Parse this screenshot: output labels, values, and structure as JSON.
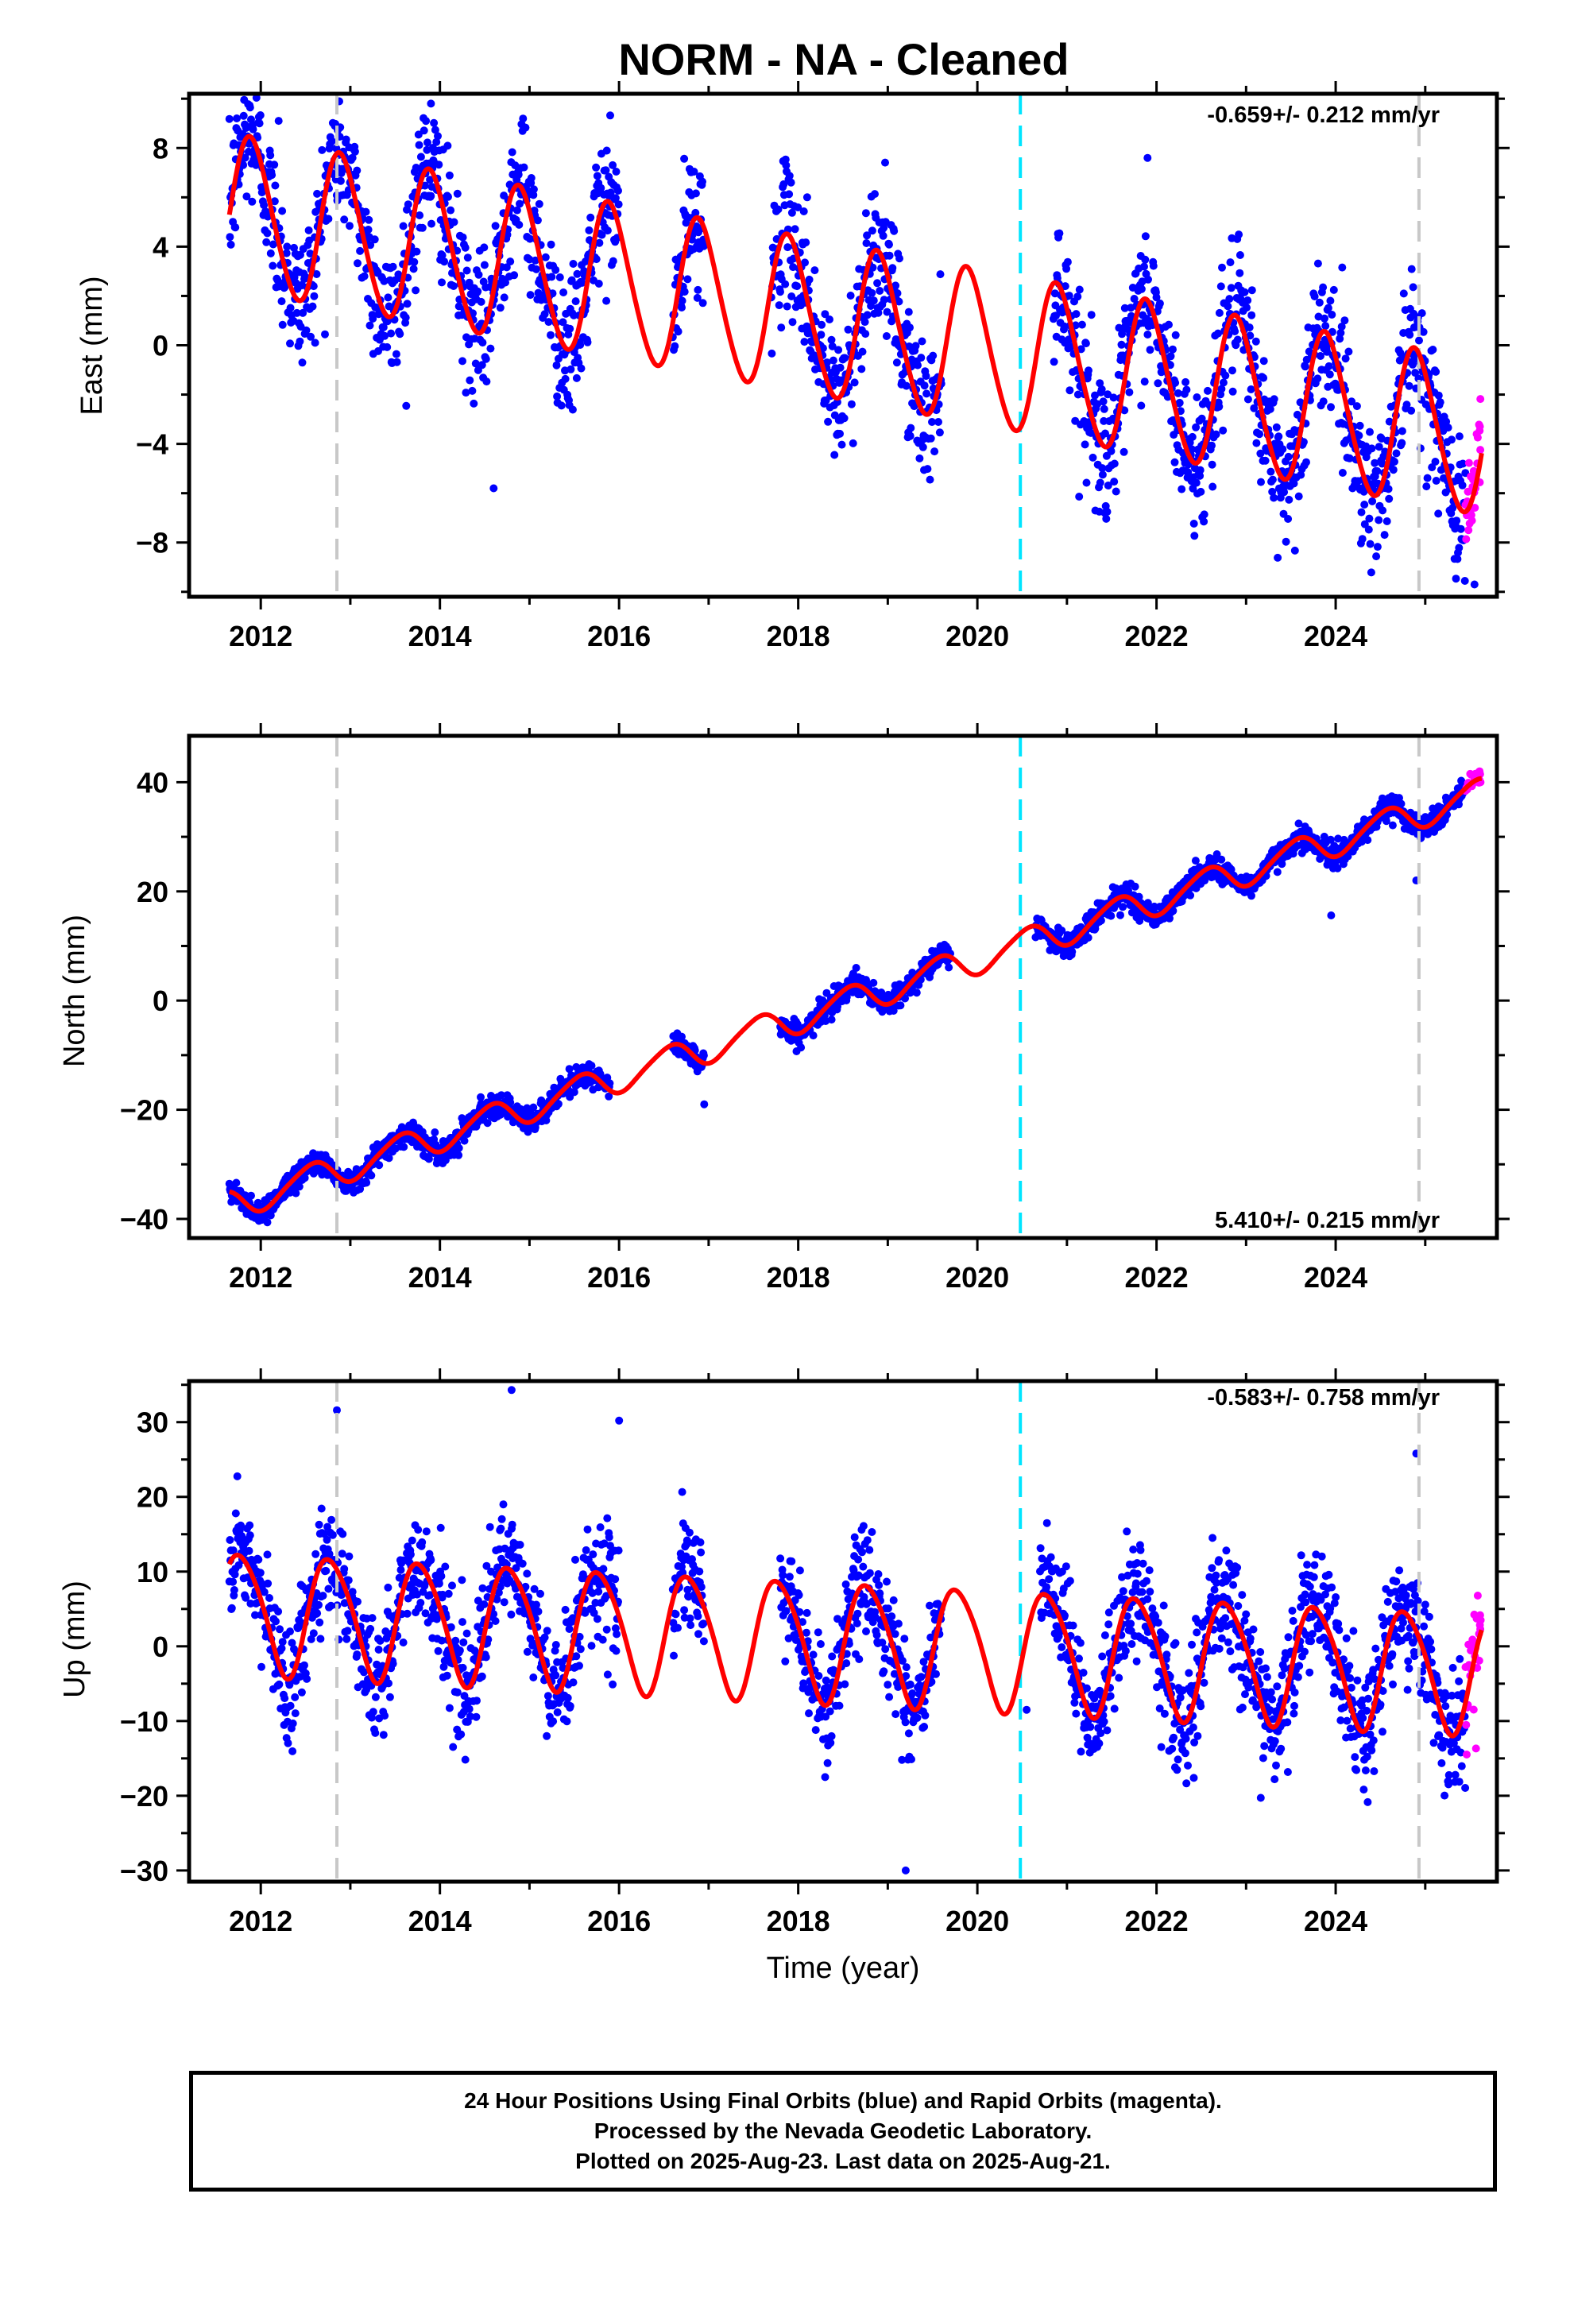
{
  "title": "NORM  - NA - Cleaned",
  "footer": {
    "line1": "24 Hour Positions Using Final Orbits (blue) and Rapid Orbits (magenta).",
    "line2": "Processed by the Nevada Geodetic Laboratory.",
    "line3": "Plotted on 2025-Aug-23. Last data on 2025-Aug-21."
  },
  "colors": {
    "final_orbits": "#0000ff",
    "rapid_orbits": "#ff00ff",
    "model_fit": "#ff0000",
    "equipment_change": "#c8c8c8",
    "earthquake": "#00e5ff"
  },
  "chart_data": [
    {
      "type": "scatter",
      "panel": "east",
      "ylabel": "East (mm)",
      "xlabel": "",
      "xlim": [
        2011.2,
        2025.8
      ],
      "ylim": [
        -10.2,
        10.2
      ],
      "xticks": [
        2012,
        2014,
        2016,
        2018,
        2020,
        2022,
        2024
      ],
      "yticks": [
        -8,
        -4,
        0,
        4,
        8
      ],
      "rate_label": "-0.659+/- 0.212 mm/yr",
      "rate_position": "top-right",
      "dashed_lines": [
        {
          "x": 2012.85,
          "kind": "equipment_change"
        },
        {
          "x": 2020.48,
          "kind": "earthquake"
        },
        {
          "x": 2024.93,
          "kind": "equipment_change"
        }
      ],
      "model": {
        "offset": 1.2,
        "trend_mm_per_yr": -0.659,
        "reference_year": 2018,
        "annual_amplitude": 3.1,
        "annual_peak_year_fraction": 0.9,
        "semiannual_amplitude": 0.3,
        "semiannual_phase": 0.3
      },
      "scatter_sd": 1.4,
      "data_spans": [
        [
          2011.65,
          2016.0
        ],
        [
          2016.6,
          2016.95
        ],
        [
          2017.7,
          2019.6
        ],
        [
          2020.85,
          2025.45
        ]
      ],
      "rapid_span": [
        2025.45,
        2025.63
      ],
      "model_span": [
        2011.65,
        2025.63
      ],
      "outliers": [
        [
          2021.9,
          7.6
        ],
        [
          2012.2,
          9.1
        ],
        [
          2013.9,
          9.8
        ],
        [
          2025.55,
          -9.7
        ],
        [
          2014.6,
          -5.8
        ],
        [
          2018.1,
          6.0
        ]
      ]
    },
    {
      "type": "scatter",
      "panel": "north",
      "ylabel": "North (mm)",
      "xlabel": "",
      "xlim": [
        2011.2,
        2025.8
      ],
      "ylim": [
        -43.5,
        48.5
      ],
      "xticks": [
        2012,
        2014,
        2016,
        2018,
        2020,
        2022,
        2024
      ],
      "yticks": [
        -40,
        -20,
        0,
        20,
        40
      ],
      "rate_label": "5.410+/- 0.215 mm/yr",
      "rate_position": "bottom-right",
      "dashed_lines": [
        {
          "x": 2012.85,
          "kind": "equipment_change"
        },
        {
          "x": 2020.48,
          "kind": "earthquake"
        },
        {
          "x": 2024.93,
          "kind": "equipment_change"
        }
      ],
      "model": {
        "offset": -3.2,
        "trend_mm_per_yr": 5.41,
        "reference_year": 2018,
        "annual_amplitude": 2.7,
        "annual_peak_year_fraction": 0.55,
        "semiannual_amplitude": 0.4,
        "semiannual_phase": 0.2
      },
      "scatter_sd": 1.1,
      "data_spans": [
        [
          2011.65,
          2015.9
        ],
        [
          2016.6,
          2016.95
        ],
        [
          2017.8,
          2019.7
        ],
        [
          2020.65,
          2025.45
        ]
      ],
      "rapid_span": [
        2025.45,
        2025.63
      ],
      "model_span": [
        2011.65,
        2025.63
      ],
      "outliers": [
        [
          2023.95,
          15.6
        ],
        [
          2024.9,
          22.0
        ],
        [
          2016.95,
          -19.0
        ]
      ]
    },
    {
      "type": "scatter",
      "panel": "up",
      "ylabel": "Up (mm)",
      "xlabel": "Time (year)",
      "xlim": [
        2011.2,
        2025.8
      ],
      "ylim": [
        -31.5,
        35.5
      ],
      "xticks": [
        2012,
        2014,
        2016,
        2018,
        2020,
        2022,
        2024
      ],
      "yticks": [
        -30,
        -20,
        -10,
        0,
        10,
        20,
        30
      ],
      "rate_label": "-0.583+/- 0.758 mm/yr",
      "rate_position": "top-right",
      "dashed_lines": [
        {
          "x": 2012.85,
          "kind": "equipment_change"
        },
        {
          "x": 2020.48,
          "kind": "earthquake"
        },
        {
          "x": 2024.93,
          "kind": "equipment_change"
        }
      ],
      "model": {
        "offset": 1.0,
        "trend_mm_per_yr": -0.583,
        "reference_year": 2018,
        "annual_amplitude": 8.0,
        "annual_peak_year_fraction": 0.78,
        "semiannual_amplitude": 1.0,
        "semiannual_phase": 0.1
      },
      "scatter_sd": 3.8,
      "data_spans": [
        [
          2011.65,
          2016.0
        ],
        [
          2016.6,
          2016.95
        ],
        [
          2017.8,
          2019.6
        ],
        [
          2020.7,
          2025.45
        ]
      ],
      "rapid_span": [
        2025.45,
        2025.63
      ],
      "model_span": [
        2011.65,
        2025.63
      ],
      "outliers": [
        [
          2012.85,
          31.6
        ],
        [
          2014.8,
          34.3
        ],
        [
          2019.2,
          -30.0
        ],
        [
          2020.55,
          -8.5
        ],
        [
          2024.9,
          25.8
        ],
        [
          2016.0,
          30.2
        ]
      ]
    }
  ]
}
